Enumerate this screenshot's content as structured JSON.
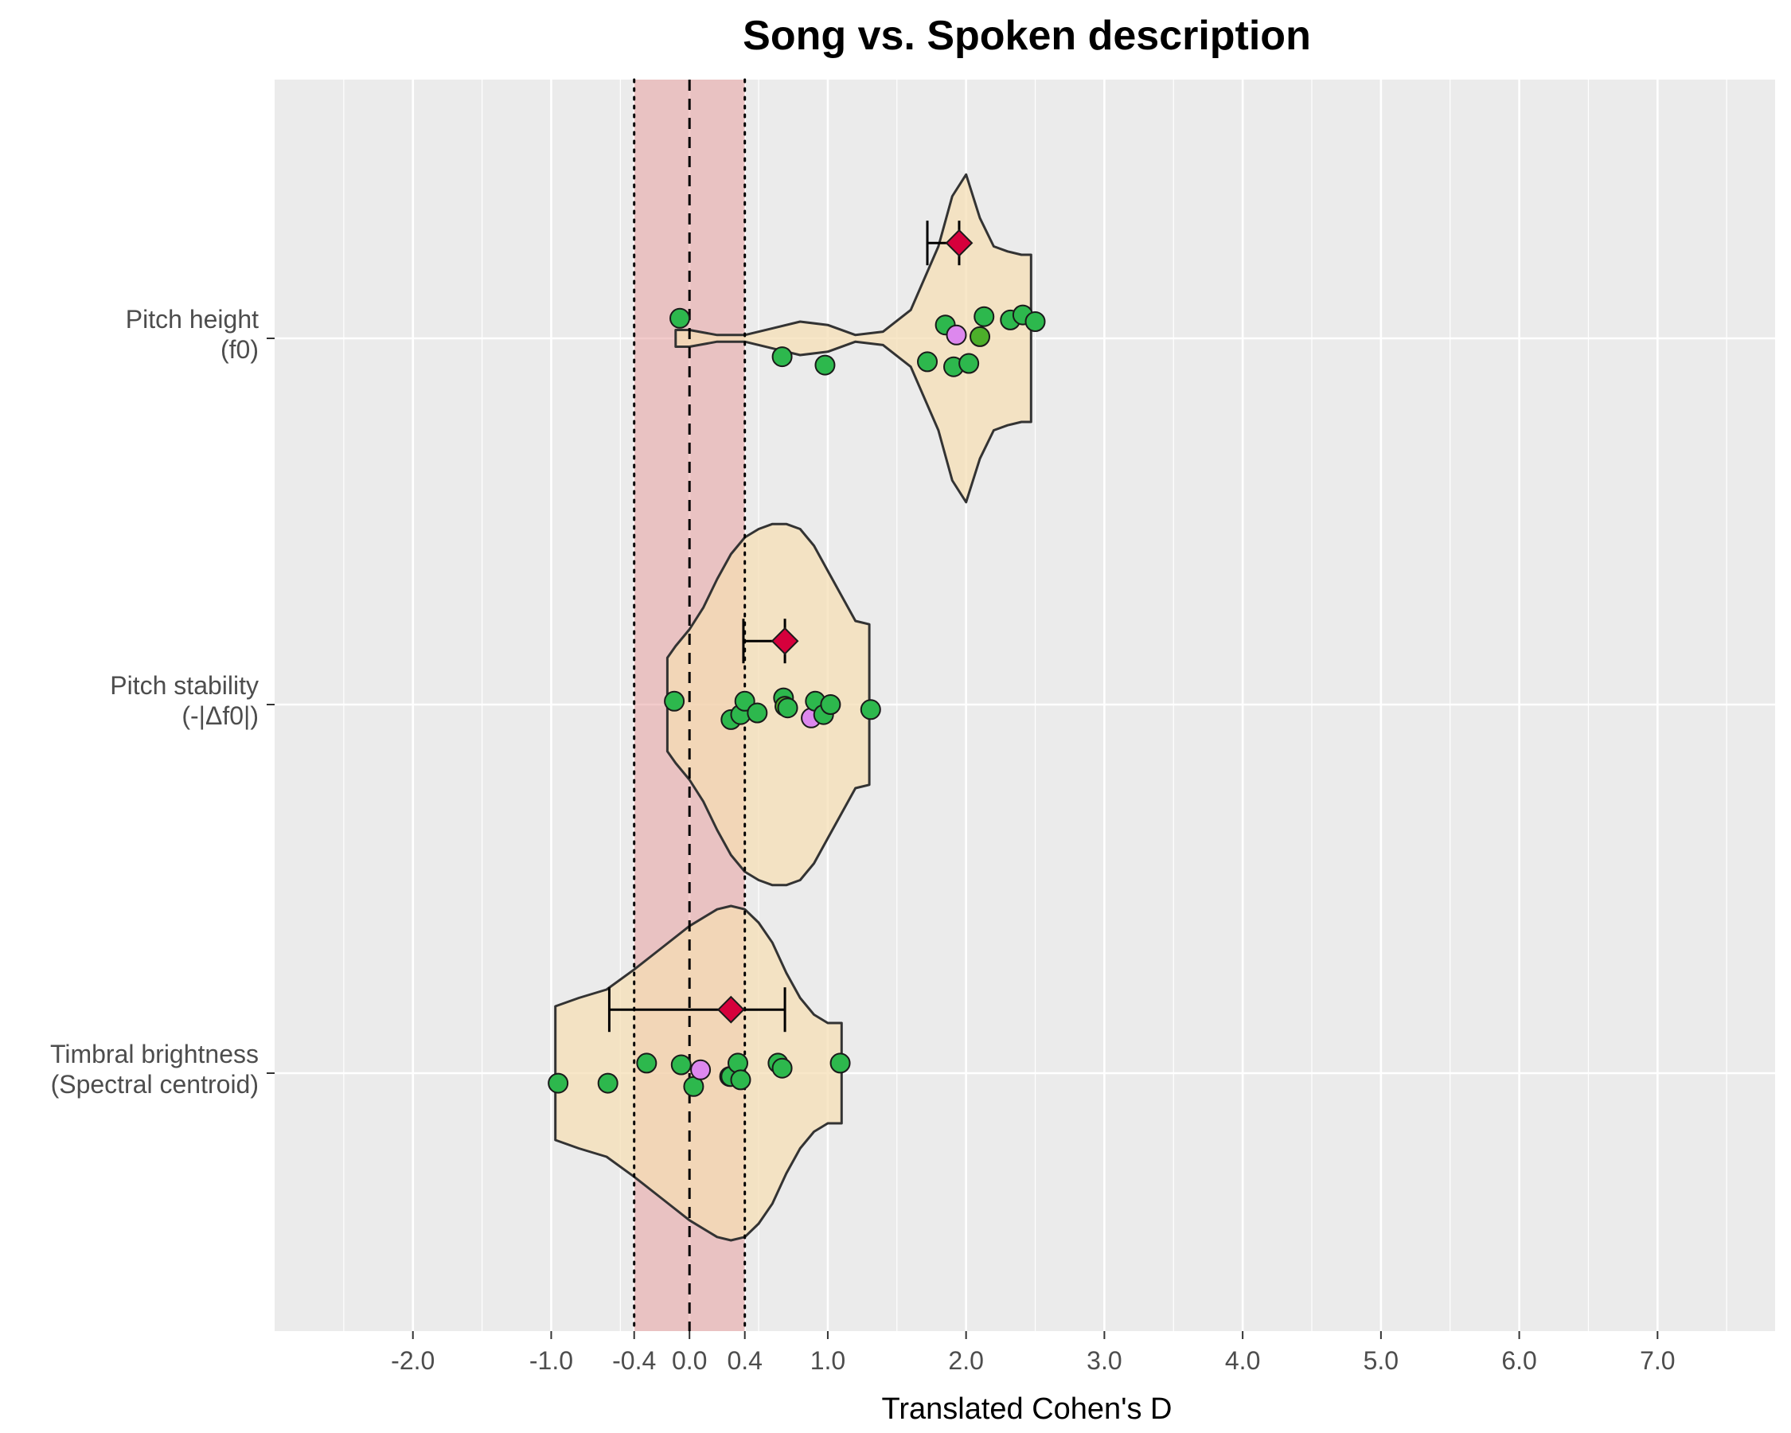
{
  "chart_data": {
    "type": "violin",
    "title": "Song vs. Spoken description",
    "xlabel": "Translated Cohen's D",
    "ylabel": "",
    "xlim": [
      -3.0,
      7.85
    ],
    "x_ticks": [
      -2.0,
      -1.0,
      -0.4,
      0.0,
      0.4,
      1.0,
      2.0,
      3.0,
      4.0,
      5.0,
      6.0,
      7.0
    ],
    "x_tick_labels": [
      "-2.0",
      "-1.0",
      "-0.4",
      "0.0",
      "0.4",
      "1.0",
      "2.0",
      "3.0",
      "4.0",
      "5.0",
      "6.0",
      "7.0"
    ],
    "reference_band": [
      -0.4,
      0.4
    ],
    "reference_line": 0.0,
    "colors": {
      "panel_bg": "#ebebeb",
      "grid": "#ffffff",
      "band": "#e8a0a0",
      "violin_fill": "#f5deb3",
      "violin_stroke": "#333333",
      "point_green": "#2db84d",
      "point_green_alt": "#4caf2a",
      "point_violet": "#dd88ee",
      "mean_marker": "#d6003c"
    },
    "categories": [
      {
        "label_lines": [
          "Pitch height",
          "(f0)"
        ],
        "violin": {
          "x": [
            -0.1,
            0.0,
            0.2,
            0.4,
            0.6,
            0.8,
            1.0,
            1.2,
            1.4,
            1.6,
            1.8,
            1.9,
            2.0,
            2.1,
            2.2,
            2.3,
            2.4,
            2.47
          ],
          "halfwidth": [
            0.05,
            0.05,
            0.02,
            0.02,
            0.06,
            0.1,
            0.08,
            0.02,
            0.04,
            0.17,
            0.55,
            0.85,
            0.98,
            0.72,
            0.55,
            0.52,
            0.5,
            0.5
          ]
        },
        "points": [
          {
            "x": -0.07,
            "y": 0.12,
            "color": "green"
          },
          {
            "x": 0.67,
            "y": -0.11,
            "color": "green"
          },
          {
            "x": 0.98,
            "y": -0.16,
            "color": "green"
          },
          {
            "x": 1.72,
            "y": -0.14,
            "color": "green"
          },
          {
            "x": 1.85,
            "y": 0.08,
            "color": "green"
          },
          {
            "x": 1.91,
            "y": -0.17,
            "color": "green"
          },
          {
            "x": 1.93,
            "y": 0.02,
            "color": "violet"
          },
          {
            "x": 2.02,
            "y": -0.15,
            "color": "green"
          },
          {
            "x": 2.1,
            "y": 0.01,
            "color": "green_alt"
          },
          {
            "x": 2.13,
            "y": 0.13,
            "color": "green"
          },
          {
            "x": 2.32,
            "y": 0.11,
            "color": "green"
          },
          {
            "x": 2.41,
            "y": 0.14,
            "color": "green"
          },
          {
            "x": 2.5,
            "y": 0.1,
            "color": "green"
          }
        ],
        "mean": 1.95,
        "ci": [
          1.72,
          1.95
        ]
      },
      {
        "label_lines": [
          "Pitch stability",
          "(-|Δf0|)"
        ],
        "violin": {
          "x": [
            -0.16,
            -0.1,
            0.0,
            0.1,
            0.2,
            0.3,
            0.4,
            0.5,
            0.6,
            0.7,
            0.8,
            0.9,
            1.0,
            1.1,
            1.2,
            1.3
          ],
          "halfwidth": [
            0.28,
            0.35,
            0.45,
            0.58,
            0.75,
            0.9,
            1.0,
            1.05,
            1.08,
            1.08,
            1.05,
            0.95,
            0.8,
            0.65,
            0.5,
            0.48
          ]
        },
        "points": [
          {
            "x": -0.11,
            "y": 0.02,
            "color": "green"
          },
          {
            "x": 0.3,
            "y": -0.09,
            "color": "green"
          },
          {
            "x": 0.37,
            "y": -0.06,
            "color": "green"
          },
          {
            "x": 0.4,
            "y": 0.02,
            "color": "green"
          },
          {
            "x": 0.49,
            "y": -0.05,
            "color": "green"
          },
          {
            "x": 0.68,
            "y": 0.04,
            "color": "green"
          },
          {
            "x": 0.69,
            "y": -0.01,
            "color": "green_alt"
          },
          {
            "x": 0.71,
            "y": -0.02,
            "color": "green"
          },
          {
            "x": 0.88,
            "y": -0.08,
            "color": "violet"
          },
          {
            "x": 0.91,
            "y": 0.02,
            "color": "green"
          },
          {
            "x": 0.97,
            "y": -0.06,
            "color": "green"
          },
          {
            "x": 1.02,
            "y": 0.0,
            "color": "green"
          },
          {
            "x": 1.31,
            "y": -0.03,
            "color": "green"
          }
        ],
        "mean": 0.69,
        "ci": [
          0.39,
          0.69
        ]
      },
      {
        "label_lines": [
          "Timbral brightness",
          "(Spectral centroid)"
        ],
        "violin": {
          "x": [
            -0.97,
            -0.8,
            -0.6,
            -0.4,
            -0.2,
            0.0,
            0.2,
            0.3,
            0.4,
            0.5,
            0.6,
            0.7,
            0.8,
            0.9,
            1.0,
            1.1
          ],
          "halfwidth": [
            0.4,
            0.45,
            0.5,
            0.62,
            0.75,
            0.88,
            0.98,
            1.0,
            0.98,
            0.9,
            0.78,
            0.6,
            0.45,
            0.35,
            0.3,
            0.3
          ]
        },
        "points": [
          {
            "x": -0.95,
            "y": -0.06,
            "color": "green"
          },
          {
            "x": -0.59,
            "y": -0.06,
            "color": "green"
          },
          {
            "x": -0.31,
            "y": 0.06,
            "color": "green"
          },
          {
            "x": -0.06,
            "y": 0.05,
            "color": "green"
          },
          {
            "x": 0.03,
            "y": -0.08,
            "color": "green"
          },
          {
            "x": 0.08,
            "y": 0.02,
            "color": "violet"
          },
          {
            "x": 0.29,
            "y": -0.02,
            "color": "green"
          },
          {
            "x": 0.3,
            "y": -0.02,
            "color": "green"
          },
          {
            "x": 0.35,
            "y": 0.06,
            "color": "green"
          },
          {
            "x": 0.37,
            "y": -0.04,
            "color": "green"
          },
          {
            "x": 0.64,
            "y": 0.06,
            "color": "green"
          },
          {
            "x": 0.67,
            "y": 0.03,
            "color": "green"
          },
          {
            "x": 1.09,
            "y": 0.06,
            "color": "green"
          }
        ],
        "mean": 0.3,
        "ci": [
          -0.58,
          0.69
        ]
      }
    ]
  }
}
